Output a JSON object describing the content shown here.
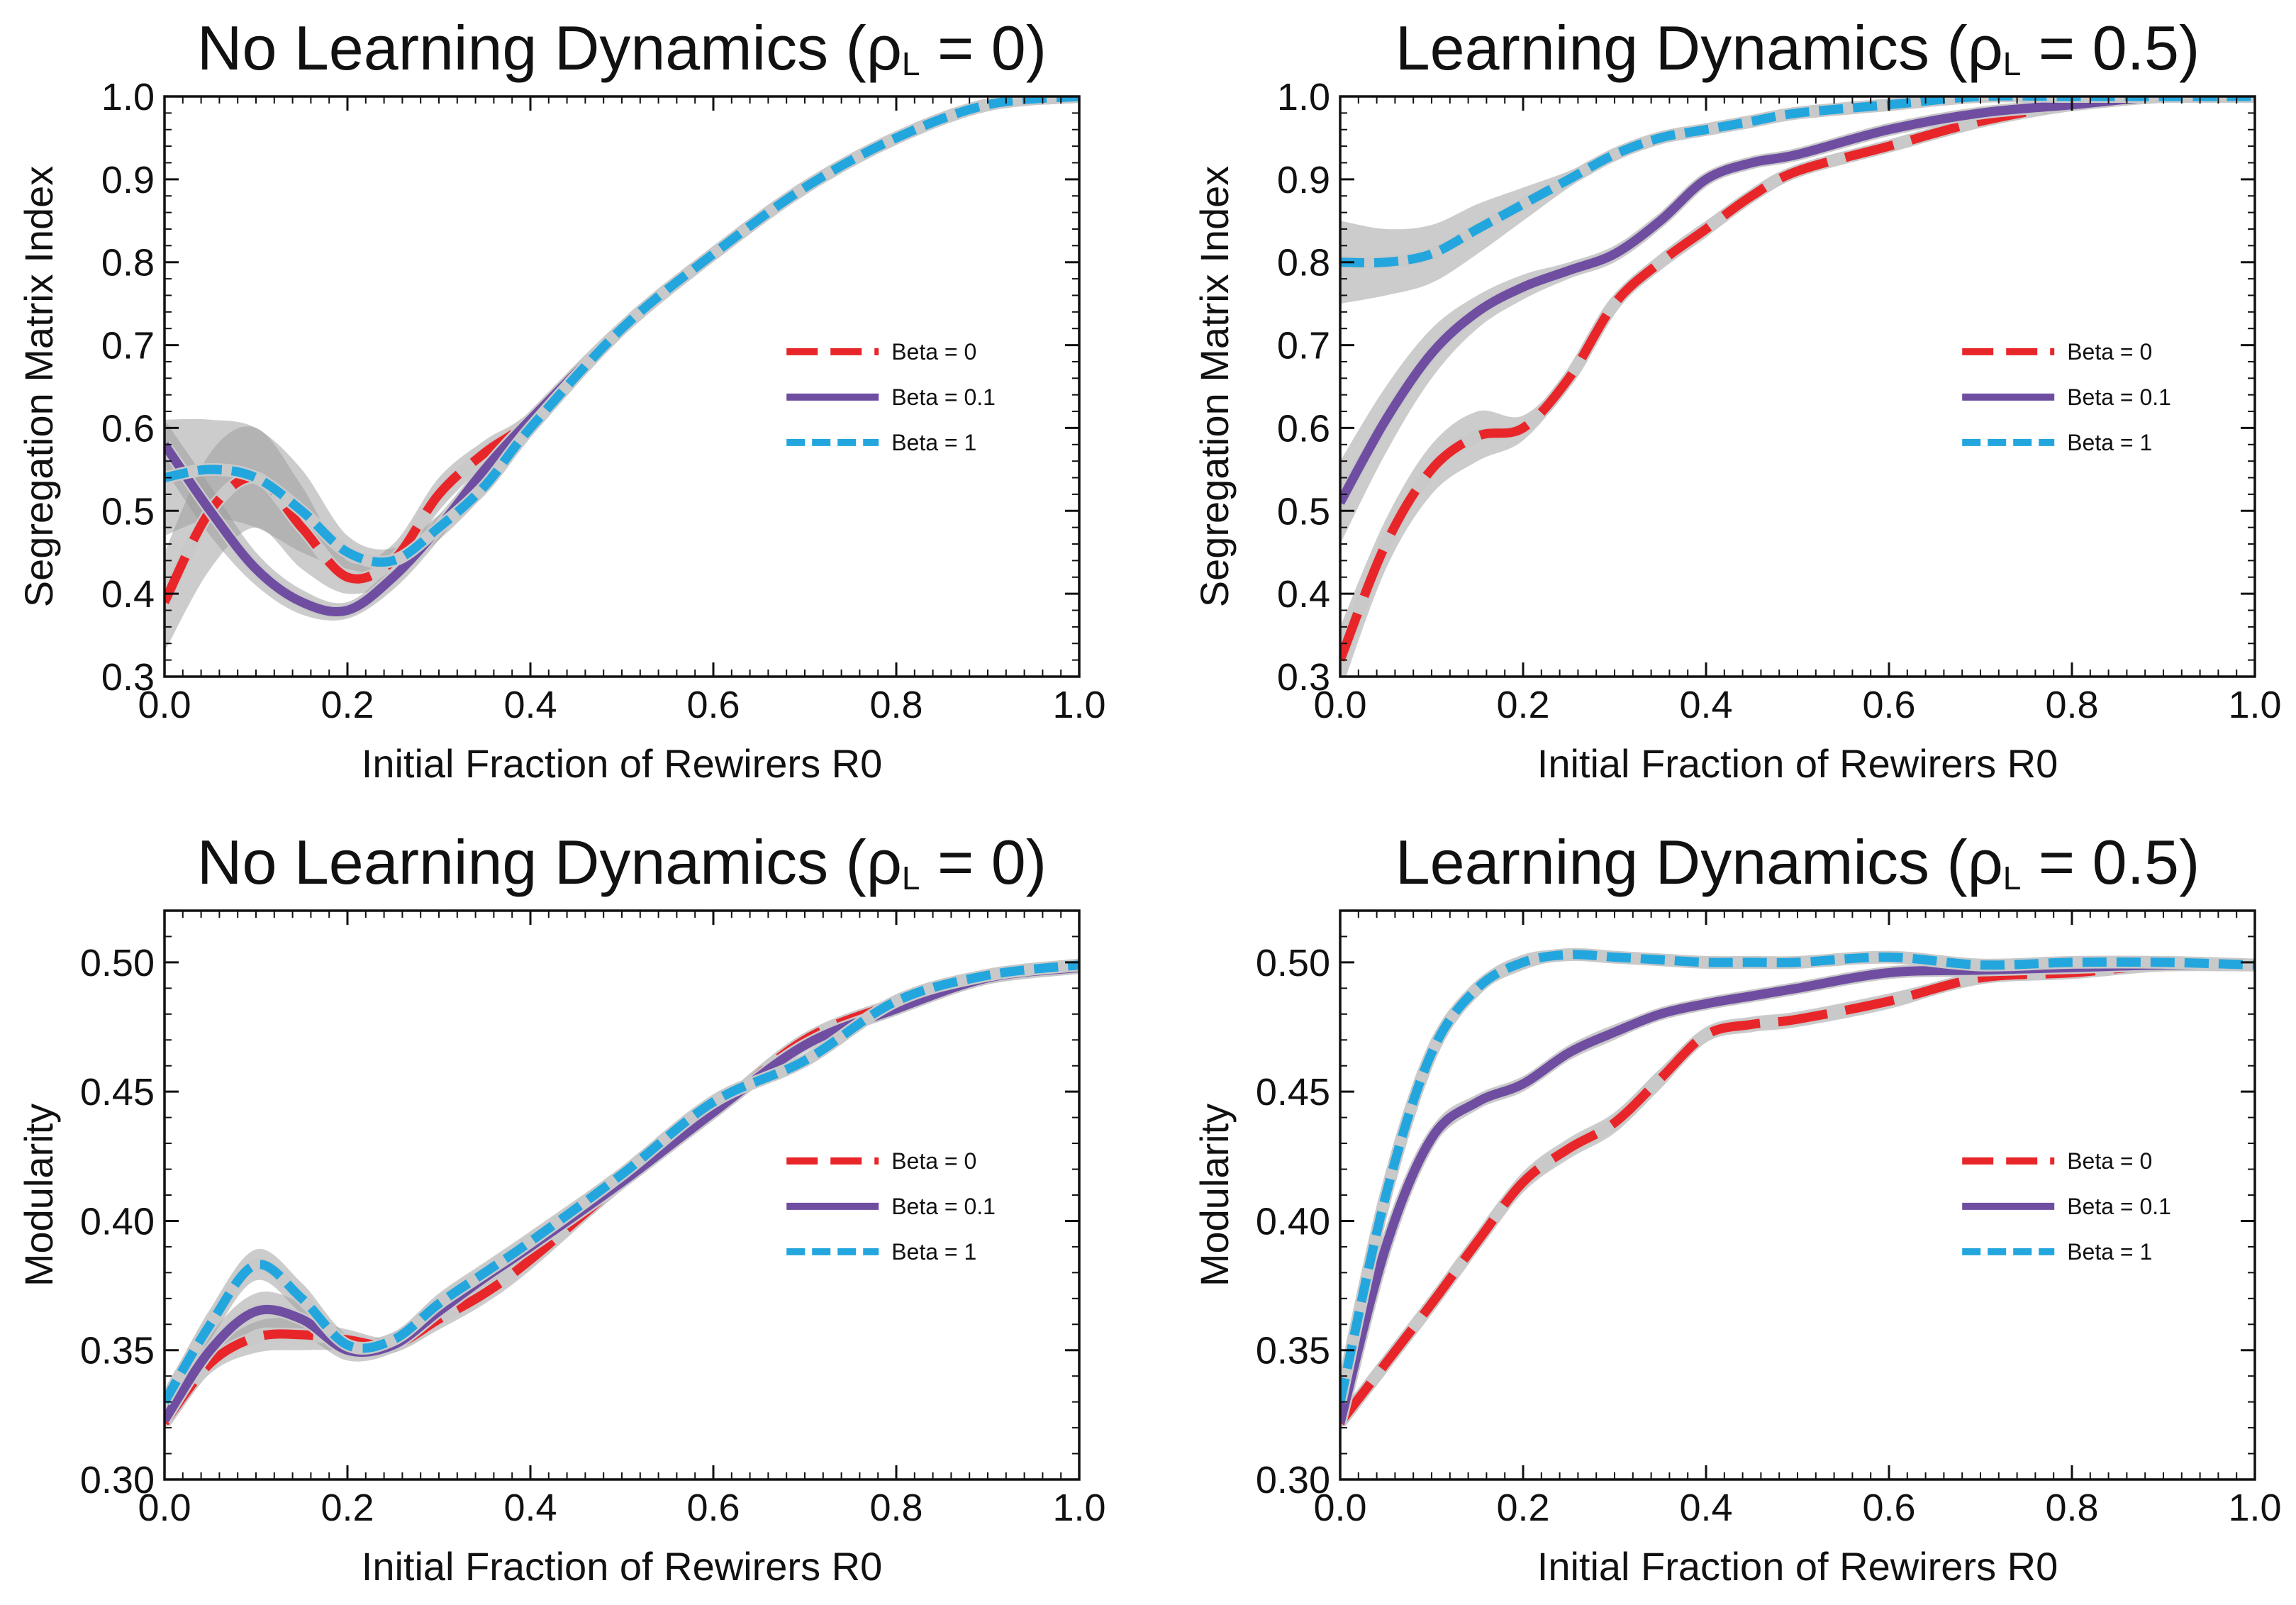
{
  "chart_data": [
    {
      "type": "line",
      "title": "No Learning Dynamics",
      "title_param": {
        "symbol": "ρ",
        "sub": "L",
        "value": "= 0"
      },
      "xlabel": "Initial Fraction of Rewirers R0",
      "ylabel": "Segregation Matrix Index",
      "xlim": [
        0,
        1
      ],
      "ylim": [
        0.3,
        1.0
      ],
      "x_ticks": [
        "0.0",
        "0.2",
        "0.4",
        "0.6",
        "0.8",
        "1.0"
      ],
      "y_ticks": [
        "0.3",
        "0.4",
        "0.5",
        "0.6",
        "0.7",
        "0.8",
        "0.9",
        "1.0"
      ],
      "legend_position": "center-right",
      "series": [
        {
          "name": "Beta  = 0",
          "color": "#e8262a",
          "dash": "long",
          "x": [
            0,
            0.05,
            0.1,
            0.15,
            0.2,
            0.25,
            0.3,
            0.35,
            0.4,
            0.5,
            0.6,
            0.7,
            0.8,
            0.9,
            1.0
          ],
          "y": [
            0.39,
            0.5,
            0.54,
            0.48,
            0.42,
            0.44,
            0.52,
            0.57,
            0.61,
            0.72,
            0.81,
            0.89,
            0.95,
            0.99,
            1.0
          ],
          "band": [
            0.06,
            0.07,
            0.06,
            0.05,
            0.02,
            0.02,
            0.02,
            0.015,
            0.01,
            0.005,
            0.005,
            0.003,
            0.002,
            0.002,
            0.0
          ]
        },
        {
          "name": "Beta = 0.1",
          "color": "#6f4ea2",
          "dash": "solid",
          "x": [
            0,
            0.05,
            0.1,
            0.15,
            0.2,
            0.25,
            0.3,
            0.35,
            0.4,
            0.5,
            0.6,
            0.7,
            0.8,
            0.9,
            1.0
          ],
          "y": [
            0.58,
            0.5,
            0.43,
            0.39,
            0.38,
            0.42,
            0.48,
            0.55,
            0.61,
            0.72,
            0.81,
            0.89,
            0.95,
            0.99,
            1.0
          ],
          "band": [
            0.03,
            0.03,
            0.02,
            0.015,
            0.01,
            0.015,
            0.015,
            0.01,
            0.01,
            0.005,
            0.005,
            0.003,
            0.002,
            0.002,
            0.0
          ]
        },
        {
          "name": "Beta = 1",
          "color": "#23a6de",
          "dash": "short",
          "x": [
            0,
            0.05,
            0.1,
            0.15,
            0.2,
            0.25,
            0.3,
            0.35,
            0.4,
            0.5,
            0.6,
            0.7,
            0.8,
            0.9,
            1.0
          ],
          "y": [
            0.54,
            0.55,
            0.54,
            0.5,
            0.45,
            0.44,
            0.48,
            0.53,
            0.6,
            0.72,
            0.81,
            0.89,
            0.95,
            0.99,
            1.0
          ],
          "band": [
            0.07,
            0.06,
            0.06,
            0.05,
            0.02,
            0.015,
            0.015,
            0.01,
            0.01,
            0.005,
            0.005,
            0.003,
            0.002,
            0.002,
            0.0
          ]
        }
      ]
    },
    {
      "type": "line",
      "title": "Learning Dynamics",
      "title_param": {
        "symbol": "ρ",
        "sub": "L",
        "value": "= 0.5"
      },
      "xlabel": "Initial Fraction of Rewirers R0",
      "ylabel": "Segregation Matrix Index",
      "xlim": [
        0,
        1
      ],
      "ylim": [
        0.3,
        1.0
      ],
      "x_ticks": [
        "0.0",
        "0.2",
        "0.4",
        "0.6",
        "0.8",
        "1.0"
      ],
      "y_ticks": [
        "0.3",
        "0.4",
        "0.5",
        "0.6",
        "0.7",
        "0.8",
        "0.9",
        "1.0"
      ],
      "legend_position": "center-right",
      "series": [
        {
          "name": "Beta  = 0",
          "color": "#e8262a",
          "dash": "long",
          "x": [
            0,
            0.05,
            0.1,
            0.15,
            0.2,
            0.25,
            0.3,
            0.35,
            0.4,
            0.45,
            0.5,
            0.6,
            0.7,
            0.8,
            0.9,
            1.0
          ],
          "y": [
            0.32,
            0.46,
            0.55,
            0.59,
            0.6,
            0.66,
            0.75,
            0.8,
            0.84,
            0.88,
            0.91,
            0.94,
            0.97,
            0.99,
            1.0,
            1.0
          ],
          "band": [
            0.04,
            0.03,
            0.03,
            0.03,
            0.015,
            0.01,
            0.01,
            0.01,
            0.01,
            0.005,
            0.005,
            0.005,
            0.005,
            0.003,
            0.002,
            0.0
          ]
        },
        {
          "name": "Beta = 0.1",
          "color": "#6f4ea2",
          "dash": "solid",
          "x": [
            0,
            0.05,
            0.1,
            0.15,
            0.2,
            0.25,
            0.3,
            0.35,
            0.4,
            0.45,
            0.5,
            0.6,
            0.7,
            0.8,
            0.9,
            1.0
          ],
          "y": [
            0.51,
            0.61,
            0.69,
            0.74,
            0.77,
            0.79,
            0.81,
            0.85,
            0.9,
            0.92,
            0.93,
            0.96,
            0.98,
            0.99,
            1.0,
            1.0
          ],
          "band": [
            0.05,
            0.04,
            0.03,
            0.02,
            0.015,
            0.01,
            0.01,
            0.01,
            0.005,
            0.005,
            0.005,
            0.005,
            0.003,
            0.002,
            0.002,
            0.0
          ]
        },
        {
          "name": "Beta = 1",
          "color": "#23a6de",
          "dash": "short",
          "x": [
            0,
            0.05,
            0.1,
            0.15,
            0.2,
            0.25,
            0.3,
            0.35,
            0.4,
            0.45,
            0.5,
            0.6,
            0.7,
            0.8,
            0.9,
            1.0
          ],
          "y": [
            0.8,
            0.8,
            0.81,
            0.84,
            0.87,
            0.9,
            0.93,
            0.95,
            0.96,
            0.97,
            0.98,
            0.99,
            1.0,
            1.0,
            1.0,
            1.0
          ],
          "band": [
            0.05,
            0.04,
            0.035,
            0.03,
            0.02,
            0.01,
            0.005,
            0.005,
            0.005,
            0.003,
            0.003,
            0.002,
            0.002,
            0.002,
            0.002,
            0.0
          ]
        }
      ]
    },
    {
      "type": "line",
      "title": "No Learning Dynamics",
      "title_param": {
        "symbol": "ρ",
        "sub": "L",
        "value": "= 0"
      },
      "xlabel": "Initial Fraction of Rewirers R0",
      "ylabel": "Modularity",
      "xlim": [
        0,
        1
      ],
      "ylim": [
        0.3,
        0.52
      ],
      "x_ticks": [
        "0.0",
        "0.2",
        "0.4",
        "0.6",
        "0.8",
        "1.0"
      ],
      "y_ticks": [
        "0.30",
        "0.35",
        "0.40",
        "0.45",
        "0.50"
      ],
      "legend_position": "center-right",
      "series": [
        {
          "name": "Beta  = 0",
          "color": "#e8262a",
          "dash": "long",
          "x": [
            0,
            0.05,
            0.1,
            0.15,
            0.2,
            0.25,
            0.3,
            0.35,
            0.4,
            0.5,
            0.6,
            0.7,
            0.8,
            0.9,
            1.0
          ],
          "y": [
            0.322,
            0.345,
            0.355,
            0.356,
            0.354,
            0.352,
            0.362,
            0.372,
            0.385,
            0.415,
            0.442,
            0.47,
            0.484,
            0.494,
            0.498
          ],
          "band": [
            0.003,
            0.004,
            0.006,
            0.006,
            0.004,
            0.003,
            0.004,
            0.004,
            0.004,
            0.003,
            0.003,
            0.002,
            0.002,
            0.001,
            0.001
          ]
        },
        {
          "name": "Beta = 0.1",
          "color": "#6f4ea2",
          "dash": "solid",
          "x": [
            0,
            0.05,
            0.1,
            0.15,
            0.2,
            0.25,
            0.3,
            0.35,
            0.4,
            0.5,
            0.6,
            0.7,
            0.8,
            0.9,
            1.0
          ],
          "y": [
            0.323,
            0.35,
            0.365,
            0.362,
            0.35,
            0.352,
            0.365,
            0.378,
            0.39,
            0.415,
            0.442,
            0.468,
            0.482,
            0.494,
            0.498
          ],
          "band": [
            0.003,
            0.006,
            0.007,
            0.006,
            0.004,
            0.003,
            0.004,
            0.004,
            0.004,
            0.003,
            0.003,
            0.002,
            0.002,
            0.001,
            0.001
          ]
        },
        {
          "name": "Beta = 1",
          "color": "#23a6de",
          "dash": "short",
          "x": [
            0,
            0.05,
            0.1,
            0.15,
            0.2,
            0.25,
            0.3,
            0.35,
            0.4,
            0.5,
            0.6,
            0.7,
            0.8,
            0.9,
            1.0
          ],
          "y": [
            0.33,
            0.36,
            0.383,
            0.37,
            0.352,
            0.354,
            0.368,
            0.38,
            0.392,
            0.418,
            0.446,
            0.462,
            0.485,
            0.495,
            0.499
          ],
          "band": [
            0.004,
            0.006,
            0.006,
            0.006,
            0.004,
            0.003,
            0.004,
            0.004,
            0.004,
            0.003,
            0.003,
            0.002,
            0.002,
            0.001,
            0.001
          ]
        }
      ]
    },
    {
      "type": "line",
      "title": "Learning Dynamics",
      "title_param": {
        "symbol": "ρ",
        "sub": "L",
        "value": "= 0.5"
      },
      "xlabel": "Initial Fraction of Rewirers R0",
      "ylabel": "Modularity",
      "xlim": [
        0,
        1
      ],
      "ylim": [
        0.3,
        0.52
      ],
      "x_ticks": [
        "0.0",
        "0.2",
        "0.4",
        "0.6",
        "0.8",
        "1.0"
      ],
      "y_ticks": [
        "0.30",
        "0.35",
        "0.40",
        "0.45",
        "0.50"
      ],
      "legend_position": "center-right",
      "series": [
        {
          "name": "Beta  = 0",
          "color": "#e8262a",
          "dash": "long",
          "x": [
            0,
            0.05,
            0.1,
            0.15,
            0.2,
            0.25,
            0.3,
            0.35,
            0.4,
            0.45,
            0.5,
            0.6,
            0.7,
            0.8,
            0.9,
            1.0
          ],
          "y": [
            0.322,
            0.345,
            0.368,
            0.392,
            0.415,
            0.428,
            0.438,
            0.455,
            0.472,
            0.476,
            0.478,
            0.485,
            0.494,
            0.496,
            0.499,
            0.499
          ],
          "band": [
            0.003,
            0.003,
            0.003,
            0.004,
            0.004,
            0.004,
            0.004,
            0.004,
            0.003,
            0.003,
            0.003,
            0.003,
            0.002,
            0.002,
            0.001,
            0.001
          ]
        },
        {
          "name": "Beta = 0.1",
          "color": "#6f4ea2",
          "dash": "solid",
          "x": [
            0,
            0.05,
            0.1,
            0.15,
            0.2,
            0.25,
            0.3,
            0.35,
            0.4,
            0.45,
            0.5,
            0.6,
            0.7,
            0.8,
            0.9,
            1.0
          ],
          "y": [
            0.322,
            0.39,
            0.432,
            0.446,
            0.453,
            0.465,
            0.473,
            0.48,
            0.484,
            0.487,
            0.49,
            0.496,
            0.497,
            0.498,
            0.499,
            0.499
          ],
          "band": [
            0.003,
            0.004,
            0.004,
            0.003,
            0.003,
            0.003,
            0.003,
            0.002,
            0.002,
            0.002,
            0.002,
            0.002,
            0.001,
            0.001,
            0.001,
            0.001
          ]
        },
        {
          "name": "Beta = 1",
          "color": "#23a6de",
          "dash": "short",
          "x": [
            0,
            0.05,
            0.1,
            0.15,
            0.2,
            0.25,
            0.3,
            0.35,
            0.4,
            0.45,
            0.5,
            0.6,
            0.7,
            0.8,
            0.9,
            1.0
          ],
          "y": [
            0.33,
            0.41,
            0.465,
            0.49,
            0.5,
            0.503,
            0.502,
            0.501,
            0.5,
            0.5,
            0.5,
            0.502,
            0.499,
            0.5,
            0.5,
            0.499
          ],
          "band": [
            0.004,
            0.004,
            0.004,
            0.003,
            0.003,
            0.002,
            0.002,
            0.002,
            0.002,
            0.002,
            0.002,
            0.002,
            0.002,
            0.001,
            0.001,
            0.001
          ]
        }
      ]
    }
  ]
}
